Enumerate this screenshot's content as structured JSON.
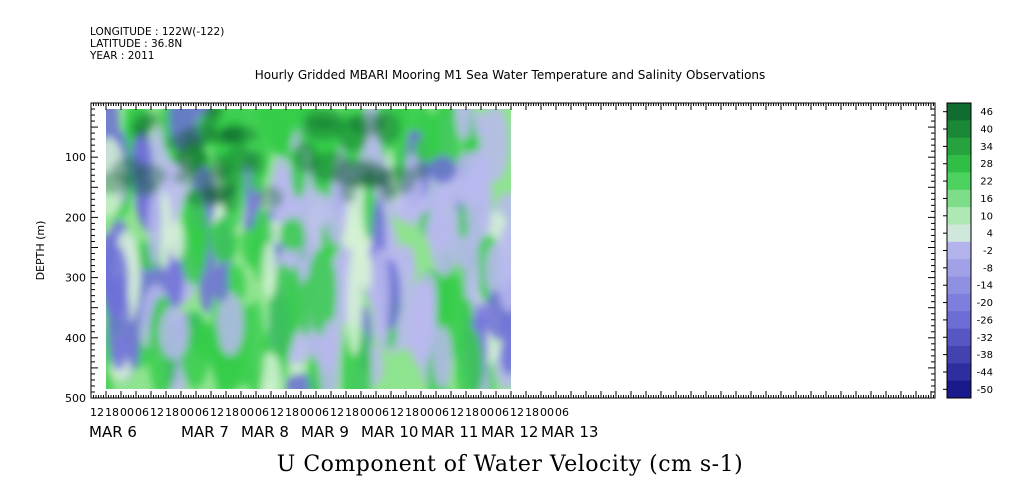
{
  "header": {
    "longitude": "LONGITUDE : 122W(-122)",
    "latitude": "LATITUDE : 36.8N",
    "year": "YEAR : 2011",
    "title": "Hourly Gridded MBARI Mooring M1 Sea Water Temperature and Salinity Observations"
  },
  "footer": {
    "variable": "U Component of Water Velocity (cm s-1)"
  },
  "colors": {
    "neg_strong": "#1a1a8c",
    "neg_mid": "#6f6fd8",
    "neg_light": "#b9b9ee",
    "near_zero": "#d6f2d6",
    "pos_light": "#8fe48f",
    "pos_mid": "#35cc4a",
    "pos_strong": "#0a5a2a"
  },
  "chart_data": {
    "type": "heatmap",
    "title": "Hourly Gridded MBARI Mooring M1 Sea Water Temperature and Salinity Observations",
    "ylabel": "DEPTH (m)",
    "xlabel": "",
    "ylim": [
      500,
      10
    ],
    "y_ticks": [
      100,
      200,
      300,
      400,
      500
    ],
    "x_hour_ticks": [
      "12",
      "18",
      "00",
      "06",
      "12",
      "18",
      "00",
      "06",
      "12",
      "18",
      "00",
      "06",
      "12",
      "18",
      "00",
      "06",
      "12",
      "18",
      "00",
      "06",
      "12",
      "18",
      "00",
      "06",
      "12",
      "18",
      "00",
      "06",
      "12",
      "18",
      "00",
      "06"
    ],
    "x_date_labels": [
      {
        "label": "MAR  6",
        "day": 6
      },
      {
        "label": "MAR  7",
        "day": 7
      },
      {
        "label": "MAR  8",
        "day": 8
      },
      {
        "label": "MAR  9",
        "day": 9
      },
      {
        "label": "MAR 10",
        "day": 10
      },
      {
        "label": "MAR 11",
        "day": 11
      },
      {
        "label": "MAR 12",
        "day": 12
      },
      {
        "label": "MAR 13",
        "day": 13
      }
    ],
    "x_start": "2011-03-05 12:00",
    "data_start": "2011-03-05 18:00",
    "data_end": "2011-03-12 12:00",
    "data_depth_range": [
      20,
      485
    ],
    "colorbar_levels": [
      "46",
      "40",
      "34",
      "28",
      "22",
      "16",
      "10",
      "4",
      "-2",
      "-8",
      "-14",
      "-20",
      "-26",
      "-32",
      "-38",
      "-44",
      "-50"
    ],
    "colorbar_range": [
      -50,
      50
    ]
  }
}
